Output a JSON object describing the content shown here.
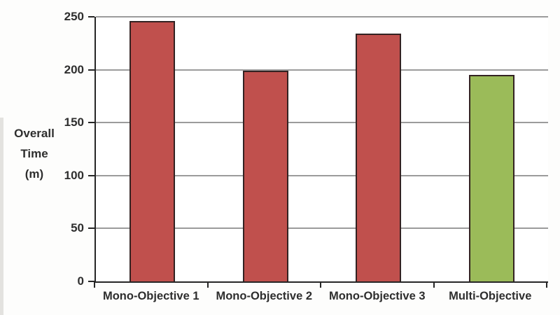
{
  "chart_data": {
    "type": "bar",
    "title": "",
    "categories": [
      "Mono-Objective 1",
      "Mono-Objective 2",
      "Mono-Objective 3",
      "Multi-Objective"
    ],
    "values": [
      246,
      199,
      234,
      195
    ],
    "bar_colors": [
      "#c0504d",
      "#c0504d",
      "#c0504d",
      "#9bbb59"
    ],
    "bar_border_color": "#332222",
    "xlabel": "",
    "ylabel": "Overall Time (m)",
    "ylabel_lines": [
      "Overall",
      "Time",
      "(m)"
    ],
    "ylim": [
      0,
      250
    ],
    "yticks": [
      0,
      50,
      100,
      150,
      200,
      250
    ],
    "grid": true,
    "gridline_color": "#9b9b9b",
    "axis_color": "#262626",
    "text_color": "#2e2e2e",
    "legend_position": "none"
  }
}
